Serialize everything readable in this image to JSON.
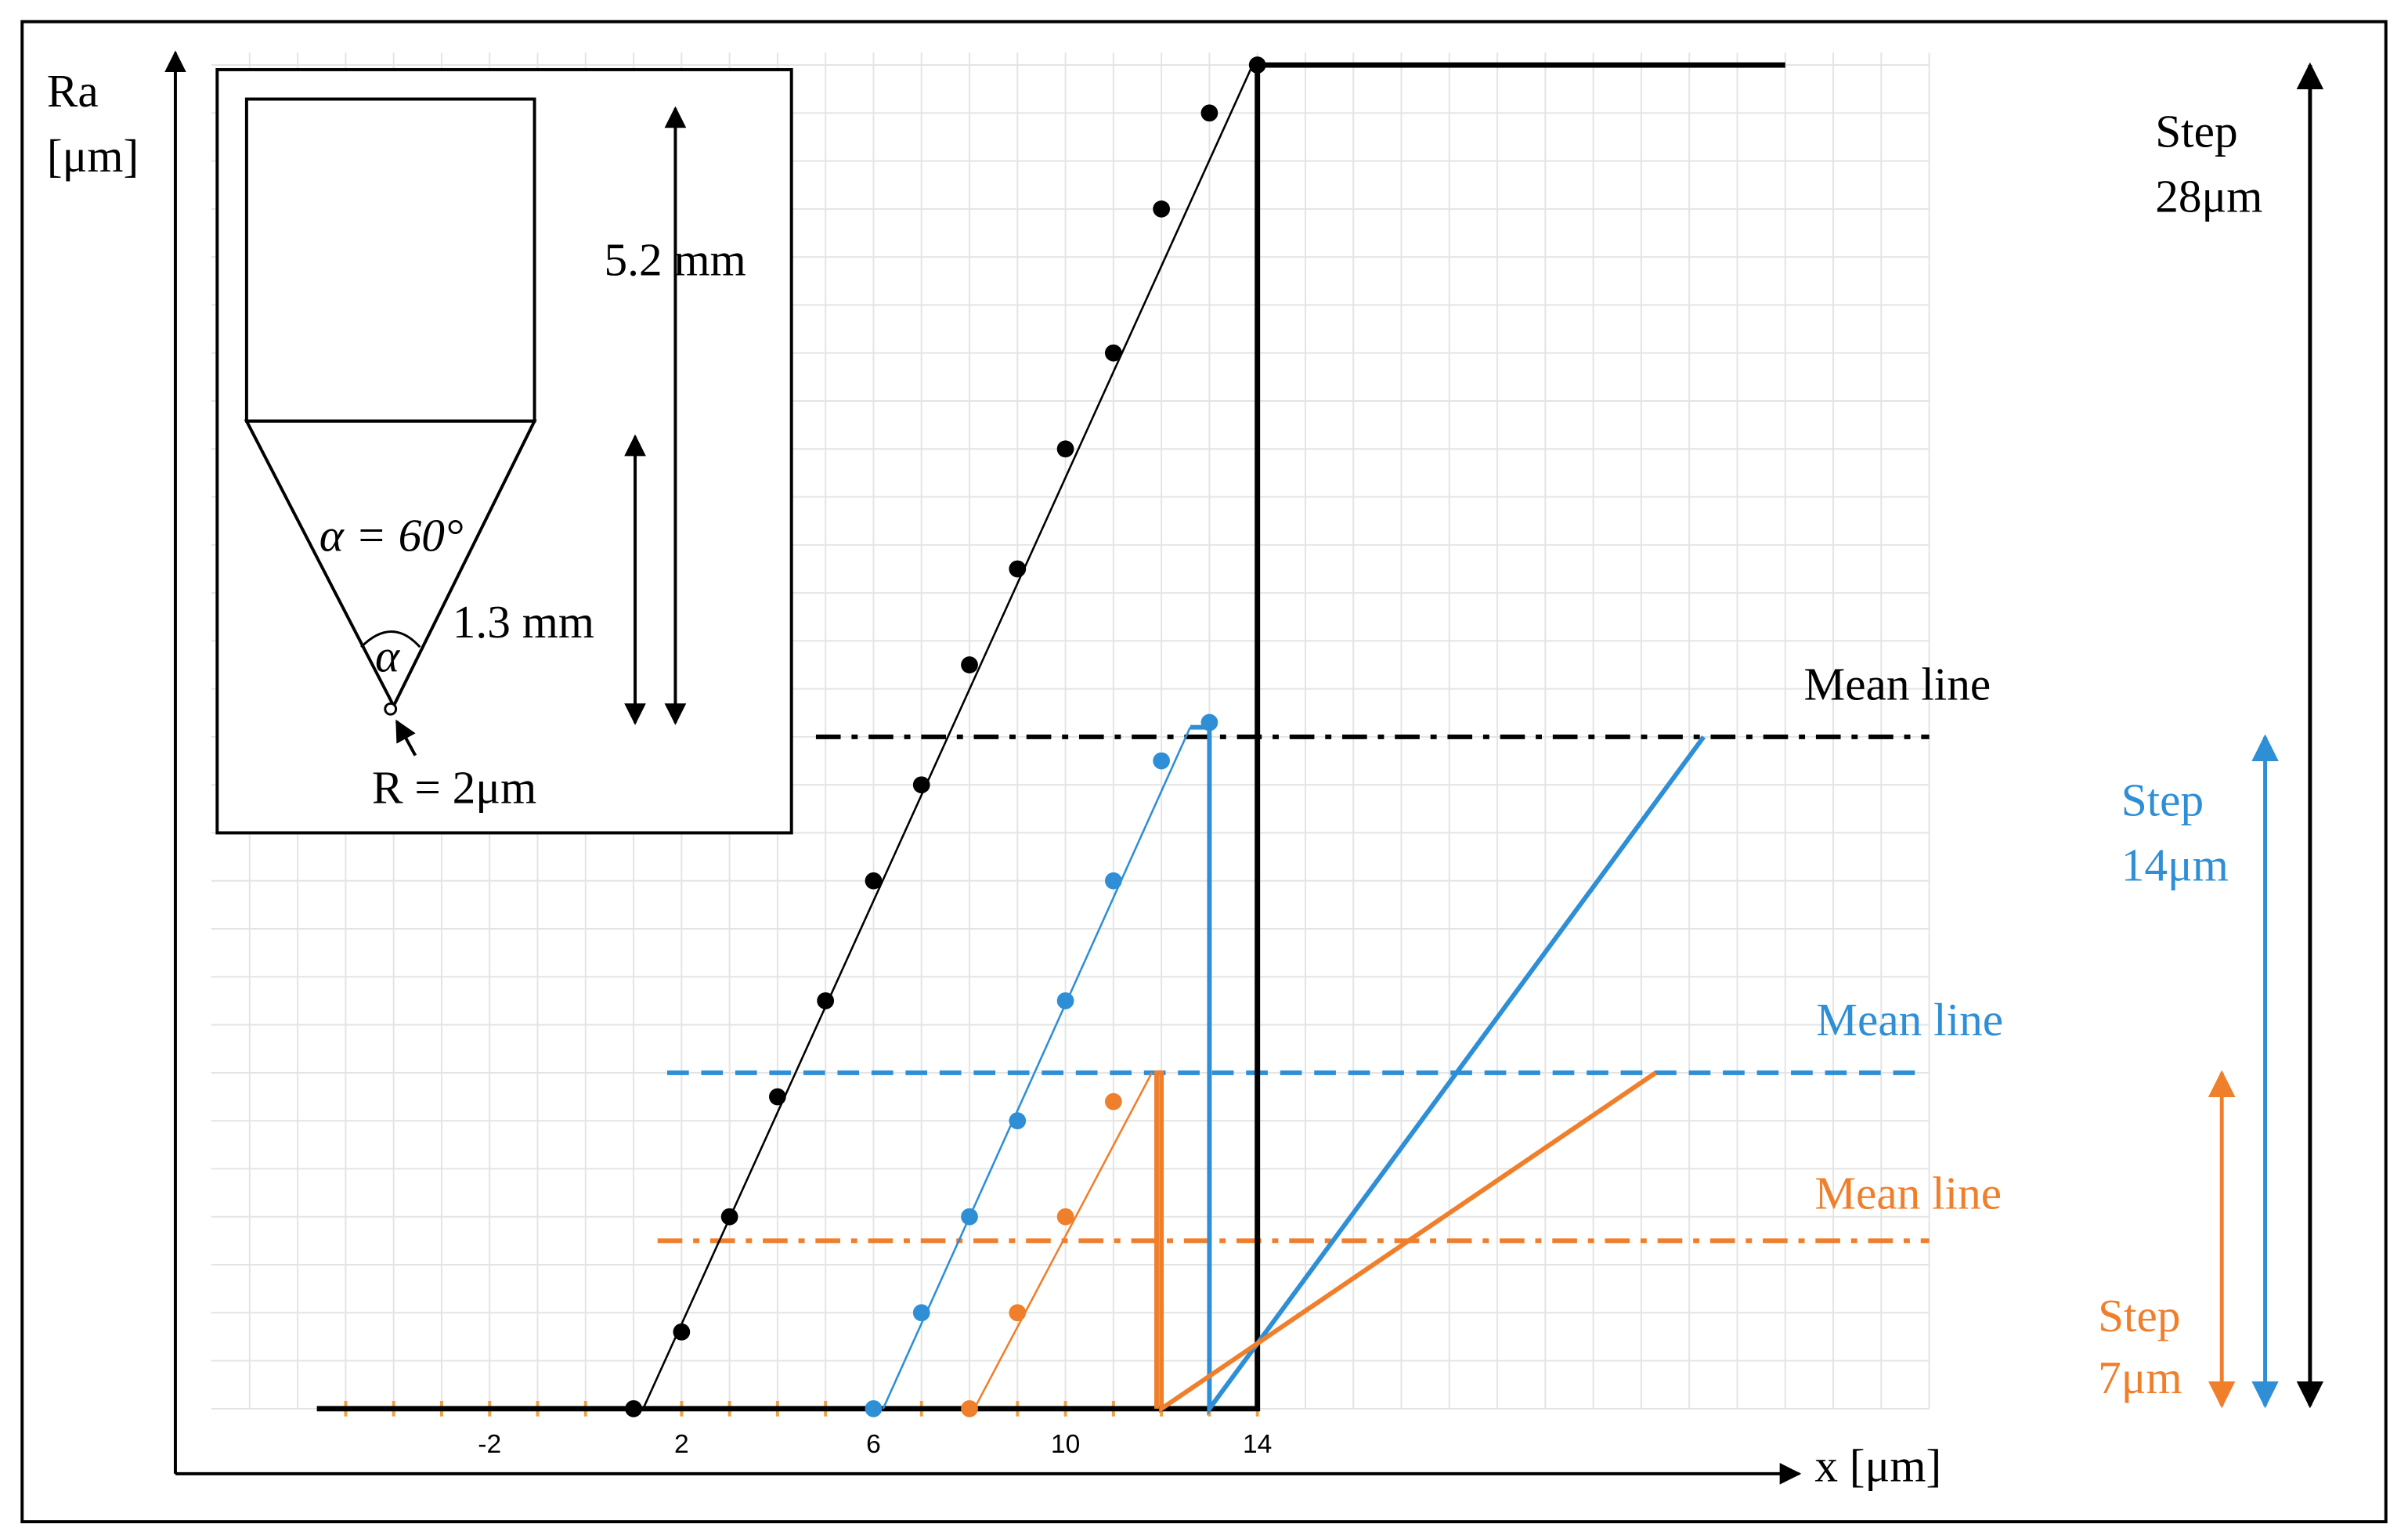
{
  "chart_data": {
    "type": "scatter",
    "xlabel": "x [μm]",
    "ylabel": [
      "Ra",
      "[μm]"
    ],
    "xlim": [
      -7.8,
      28
    ],
    "ylim": [
      0,
      28
    ],
    "xticks": [
      -2,
      2,
      6,
      10,
      14
    ],
    "grid": true,
    "series": [
      {
        "color": "#000000",
        "x": [
          1,
          2,
          3,
          4,
          5,
          6,
          7,
          8,
          9,
          10,
          11,
          12,
          13,
          14
        ],
        "values": [
          0,
          1.6,
          4,
          6.5,
          8.5,
          11,
          13,
          15.5,
          17.5,
          20,
          22,
          25,
          27,
          28
        ],
        "fit": {
          "x": [
            1.2,
            13.9
          ],
          "values": [
            0,
            28
          ]
        },
        "profile": {
          "x": [
            -5.6,
            14,
            14,
            25
          ],
          "values": [
            0,
            0,
            28,
            28
          ]
        },
        "mean": {
          "label": "Mean line",
          "value": 14,
          "x": [
            4.8,
            28
          ],
          "dash": "dash-dot"
        },
        "step": {
          "label": [
            "Step",
            "28μm"
          ],
          "value": 28
        }
      },
      {
        "color": "#2e8fd6",
        "x": [
          6,
          7,
          8,
          9,
          10,
          11,
          12,
          13
        ],
        "values": [
          0,
          2,
          4,
          6,
          8.5,
          11,
          13.5,
          14.3
        ],
        "fit": {
          "x": [
            6.2,
            12.6
          ],
          "values": [
            0,
            14.2
          ]
        },
        "profile": {
          "x": [
            12.6,
            13,
            13,
            23.3
          ],
          "values": [
            14.2,
            14.2,
            0,
            14
          ]
        },
        "mean": {
          "label": "Mean line",
          "value": 7,
          "x": [
            1.7,
            27.7
          ],
          "dash": "dashed"
        },
        "step": {
          "label": [
            "Step",
            "14μm"
          ],
          "value": 14
        }
      },
      {
        "color": "#f07f2c",
        "x": [
          8,
          9,
          10,
          11
        ],
        "values": [
          0,
          2,
          4,
          6.4
        ],
        "fit": {
          "x": [
            8.1,
            11.8
          ],
          "values": [
            0,
            7
          ]
        },
        "profile": {
          "x": [
            11.9,
            11.9,
            12,
            12,
            22.3
          ],
          "values": [
            0,
            7,
            7,
            0,
            7
          ]
        },
        "mean": {
          "label": "Mean line",
          "value": 3.5,
          "x": [
            1.5,
            28
          ],
          "dash": "dash-dot"
        },
        "step": {
          "label": [
            "Step",
            "7μm"
          ],
          "value": 7
        }
      }
    ],
    "inset": {
      "height_label": "5.2 mm",
      "cone_label": "1.3 mm",
      "angle_label": "α = 60°",
      "angle_symbol": "α",
      "radius_label": "R = 2μm"
    }
  }
}
